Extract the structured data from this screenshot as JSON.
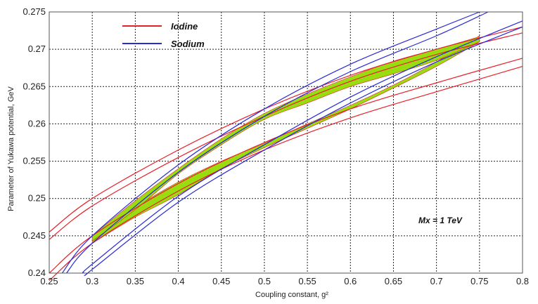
{
  "chart_data": {
    "type": "line",
    "title": "",
    "xlabel": "Coupling constant, g²",
    "ylabel": "Parameter of Yukawa potential, GeV",
    "xlim": [
      0.25,
      0.8
    ],
    "ylim": [
      0.24,
      0.275
    ],
    "xticks": [
      "0.25",
      "0.3",
      "0.35",
      "0.4",
      "0.45",
      "0.5",
      "0.55",
      "0.6",
      "0.65",
      "0.7",
      "0.75",
      "0.8"
    ],
    "yticks": [
      "0.24",
      "0.245",
      "0.25",
      "0.255",
      "0.26",
      "0.265",
      "0.27",
      "0.275"
    ],
    "grid": true,
    "legend_position": "top-left",
    "annotation": "Mx = 1 TeV",
    "colors": {
      "Iodine": "#e8202a",
      "Sodium": "#2a2ad8",
      "overlap": "#99dd11",
      "grid": "#222222"
    },
    "series": [
      {
        "name": "Iodine",
        "curves": [
          {
            "x": [
              0.25,
              0.3,
              0.4,
              0.5,
              0.6,
              0.7,
              0.8
            ],
            "y": [
              0.2455,
              0.25,
              0.2565,
              0.262,
              0.2665,
              0.27,
              0.273
            ]
          },
          {
            "x": [
              0.25,
              0.3,
              0.4,
              0.5,
              0.6,
              0.7,
              0.8
            ],
            "y": [
              0.2445,
              0.249,
              0.2555,
              0.261,
              0.2657,
              0.2693,
              0.2722
            ]
          },
          {
            "x": [
              0.25,
              0.3,
              0.4,
              0.5,
              0.6,
              0.7,
              0.8
            ],
            "y": [
              0.24,
              0.245,
              0.252,
              0.2575,
              0.262,
              0.2655,
              0.2688
            ]
          },
          {
            "x": [
              0.25,
              0.3,
              0.4,
              0.5,
              0.6,
              0.7,
              0.8
            ],
            "y": [
              0.239,
              0.244,
              0.251,
              0.2565,
              0.2608,
              0.2643,
              0.2677
            ]
          }
        ]
      },
      {
        "name": "Sodium",
        "curves": [
          {
            "x": [
              0.265,
              0.3,
              0.4,
              0.5,
              0.6,
              0.7,
              0.75
            ],
            "y": [
              0.24,
              0.245,
              0.2545,
              0.262,
              0.268,
              0.2727,
              0.275
            ]
          },
          {
            "x": [
              0.27,
              0.3,
              0.4,
              0.5,
              0.6,
              0.7,
              0.76
            ],
            "y": [
              0.24,
              0.244,
              0.2535,
              0.261,
              0.267,
              0.2718,
              0.275
            ]
          },
          {
            "x": [
              0.29,
              0.3,
              0.4,
              0.5,
              0.6,
              0.7,
              0.8
            ],
            "y": [
              0.24,
              0.2412,
              0.2503,
              0.2572,
              0.2636,
              0.269,
              0.2738
            ]
          },
          {
            "x": [
              0.295,
              0.3,
              0.4,
              0.5,
              0.6,
              0.7,
              0.8
            ],
            "y": [
              0.24,
              0.2405,
              0.2495,
              0.2565,
              0.2628,
              0.2683,
              0.273
            ]
          }
        ]
      }
    ],
    "overlap_regions": [
      {
        "x": [
          0.3,
          0.35,
          0.4,
          0.45,
          0.5,
          0.55,
          0.6,
          0.65,
          0.7,
          0.75
        ],
        "upper": [
          0.2448,
          0.2488,
          0.2522,
          0.255,
          0.2574,
          0.26,
          0.2625,
          0.2652,
          0.2683,
          0.2718
        ],
        "lower": [
          0.244,
          0.2475,
          0.2505,
          0.254,
          0.2568,
          0.2594,
          0.262,
          0.2648,
          0.2677,
          0.271
        ]
      },
      {
        "x": [
          0.3,
          0.35,
          0.4,
          0.45,
          0.5,
          0.55,
          0.6,
          0.65,
          0.7,
          0.75
        ],
        "upper": [
          0.245,
          0.2497,
          0.254,
          0.258,
          0.2614,
          0.264,
          0.2663,
          0.2684,
          0.27,
          0.2717
        ],
        "lower": [
          0.2443,
          0.2485,
          0.2533,
          0.2572,
          0.2606,
          0.2628,
          0.265,
          0.2667,
          0.2685,
          0.271
        ]
      }
    ]
  }
}
